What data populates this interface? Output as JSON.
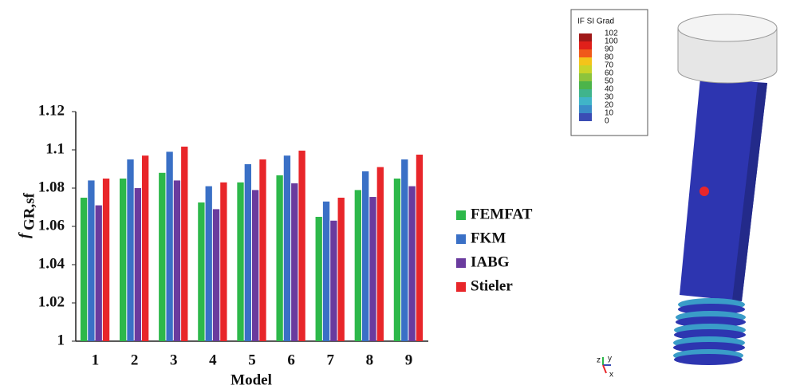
{
  "chart_data": {
    "type": "bar",
    "xlabel": "Model",
    "ylabel": "f",
    "ylabel_subscript": "GR,sf",
    "categories": [
      "1",
      "2",
      "3",
      "4",
      "5",
      "6",
      "7",
      "8",
      "9"
    ],
    "series": [
      {
        "name": "FEMFAT",
        "color": "#2db84a",
        "values": [
          1.075,
          1.085,
          1.088,
          1.0725,
          1.083,
          1.0867,
          1.065,
          1.079,
          1.085
        ]
      },
      {
        "name": "FKM",
        "color": "#3a70c6",
        "values": [
          1.084,
          1.095,
          1.099,
          1.081,
          1.0925,
          1.097,
          1.073,
          1.0888,
          1.095
        ]
      },
      {
        "name": "IABG",
        "color": "#6a3b9e",
        "values": [
          1.071,
          1.08,
          1.084,
          1.069,
          1.079,
          1.0825,
          1.063,
          1.0754,
          1.081
        ]
      },
      {
        "name": "Stieler",
        "color": "#e8262a",
        "values": [
          1.085,
          1.097,
          1.1017,
          1.083,
          1.095,
          1.0996,
          1.075,
          1.091,
          1.0975
        ]
      }
    ],
    "ylim": [
      1,
      1.12
    ],
    "yticks": [
      1,
      1.02,
      1.04,
      1.06,
      1.08,
      1.1,
      1.12
    ],
    "legend": "right"
  },
  "contour_legend": {
    "title": "IF SI Grad",
    "levels": [
      102,
      100,
      90,
      80,
      70,
      60,
      50,
      40,
      30,
      20,
      10,
      0
    ],
    "colors": [
      "#a01818",
      "#e0201a",
      "#f05a1a",
      "#f4c41a",
      "#c8d42a",
      "#8cc43c",
      "#4cb44a",
      "#40b48c",
      "#40b4c8",
      "#3a8cc8",
      "#3a4cb4"
    ]
  },
  "triad": [
    "z",
    "y",
    "x"
  ]
}
